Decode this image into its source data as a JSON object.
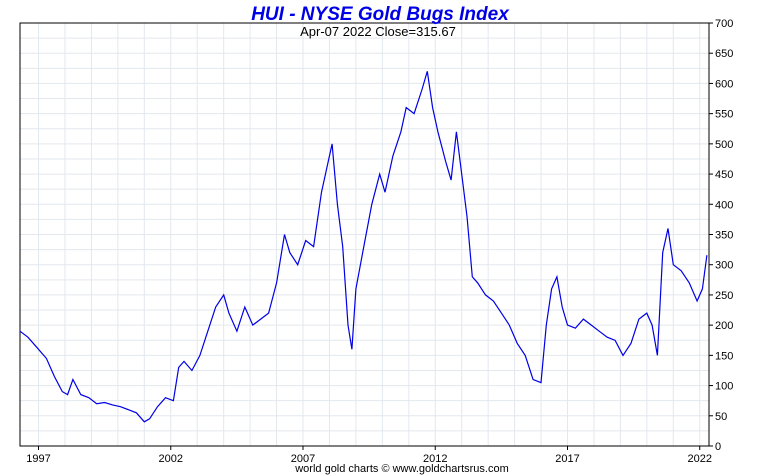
{
  "chart_data": {
    "type": "line",
    "title": "HUI - NYSE Gold Bugs Index",
    "subtitle": "Apr-07  2022   Close=315.67",
    "footer": "world gold charts © www.goldchartsrus.com",
    "series_color": "#0000e6",
    "title_color": "#0000e6",
    "grid": true,
    "ylim": [
      0,
      700
    ],
    "y_ticks": [
      0,
      50,
      100,
      150,
      200,
      250,
      300,
      350,
      400,
      450,
      500,
      550,
      600,
      650,
      700
    ],
    "xlim": [
      1996.3,
      2022.35
    ],
    "x_ticks": [
      {
        "value": 1997,
        "label": "1997"
      },
      {
        "value": 2002,
        "label": "2002"
      },
      {
        "value": 2007,
        "label": "2007"
      },
      {
        "value": 2012,
        "label": "2012"
      },
      {
        "value": 2017,
        "label": "2017"
      },
      {
        "value": 2022,
        "label": "2022"
      }
    ],
    "series": [
      {
        "x": [
          1996.3,
          1996.6,
          1996.9,
          1997.3,
          1997.6,
          1997.9,
          1998.1,
          1998.3,
          1998.6,
          1998.9,
          1999.2,
          1999.5,
          1999.8,
          2000.1,
          2000.4,
          2000.7,
          2001.0,
          2001.2,
          2001.5,
          2001.8,
          2002.1,
          2002.3,
          2002.5,
          2002.8,
          2003.1,
          2003.4,
          2003.7,
          2004.0,
          2004.2,
          2004.5,
          2004.8,
          2005.1,
          2005.4,
          2005.7,
          2006.0,
          2006.3,
          2006.5,
          2006.8,
          2007.1,
          2007.4,
          2007.7,
          2007.9,
          2008.1,
          2008.3,
          2008.5,
          2008.7,
          2008.85,
          2009.0,
          2009.3,
          2009.6,
          2009.9,
          2010.1,
          2010.4,
          2010.7,
          2010.9,
          2011.2,
          2011.5,
          2011.7,
          2011.9,
          2012.1,
          2012.4,
          2012.6,
          2012.8,
          2013.0,
          2013.2,
          2013.4,
          2013.6,
          2013.9,
          2014.2,
          2014.5,
          2014.8,
          2015.1,
          2015.4,
          2015.7,
          2016.0,
          2016.2,
          2016.4,
          2016.6,
          2016.8,
          2017.0,
          2017.3,
          2017.6,
          2017.9,
          2018.2,
          2018.5,
          2018.8,
          2019.1,
          2019.4,
          2019.7,
          2020.0,
          2020.2,
          2020.4,
          2020.6,
          2020.8,
          2021.0,
          2021.3,
          2021.6,
          2021.9,
          2022.1,
          2022.27
        ],
        "values": [
          190,
          180,
          165,
          145,
          115,
          90,
          85,
          110,
          85,
          80,
          70,
          72,
          68,
          65,
          60,
          55,
          40,
          45,
          65,
          80,
          75,
          130,
          140,
          125,
          150,
          190,
          230,
          250,
          220,
          190,
          230,
          200,
          210,
          220,
          270,
          350,
          320,
          300,
          340,
          330,
          420,
          460,
          500,
          400,
          330,
          200,
          160,
          260,
          330,
          400,
          450,
          420,
          480,
          520,
          560,
          550,
          590,
          620,
          560,
          520,
          470,
          440,
          520,
          450,
          380,
          280,
          270,
          250,
          240,
          220,
          200,
          170,
          150,
          110,
          105,
          200,
          260,
          280,
          230,
          200,
          195,
          210,
          200,
          190,
          180,
          175,
          150,
          170,
          210,
          220,
          200,
          150,
          320,
          360,
          300,
          290,
          270,
          240,
          260,
          315.67
        ]
      }
    ]
  }
}
